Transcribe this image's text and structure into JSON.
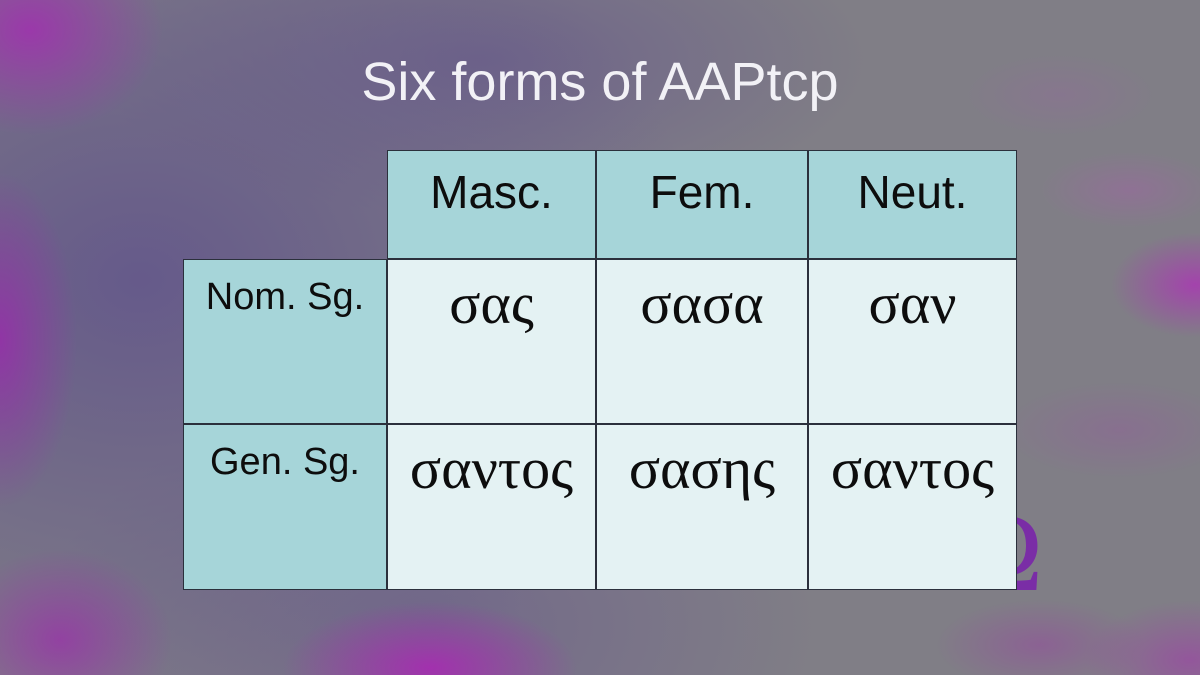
{
  "slide": {
    "title": "Six forms of AAPtcp",
    "watermark_letter": "Ω"
  },
  "table": {
    "column_headers": [
      "Masc.",
      "Fem.",
      "Neut."
    ],
    "rows": [
      {
        "label": "Nom. Sg.",
        "cells": [
          "σας",
          "σασα",
          "σαν"
        ]
      },
      {
        "label": "Gen. Sg.",
        "cells": [
          "σαντος",
          "σασης",
          "σαντος"
        ]
      }
    ]
  },
  "colors": {
    "header_cell_bg": "#a6d5d9",
    "data_cell_bg": "#e4f2f3",
    "table_border": "#2b303c",
    "title_text": "#f2f1f6",
    "cell_text": "#0d0d0d",
    "watermark": "#7a2da6",
    "background_base": "#807e86",
    "background_magenta": "#a12fa8",
    "background_slate_purple": "#64588a"
  }
}
